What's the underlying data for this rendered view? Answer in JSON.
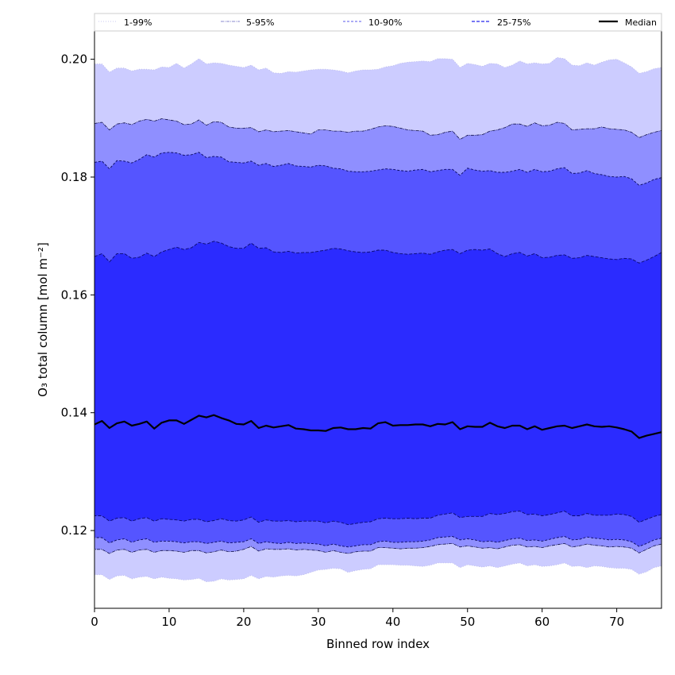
{
  "chart_data": {
    "type": "area",
    "xlabel": "Binned row index",
    "ylabel": "O₃ total column [mol m⁻²]",
    "xlim": [
      0,
      76
    ],
    "ylim": [
      0.1068,
      0.2048
    ],
    "xticks": [
      0,
      10,
      20,
      30,
      40,
      50,
      60,
      70
    ],
    "yticks": [
      0.12,
      0.14,
      0.16,
      0.18,
      0.2
    ],
    "ytick_labels": [
      "0.12",
      "0.14",
      "0.16",
      "0.18",
      "0.20"
    ],
    "grid": false,
    "legend_position": "top",
    "colors": {
      "band_1_99": "#ccccff",
      "band_5_95": "#8f8fff",
      "band_10_90": "#5555ff",
      "band_25_75": "#2b2bff",
      "median": "#000000"
    },
    "x": [
      0,
      1,
      2,
      3,
      4,
      5,
      6,
      7,
      8,
      9,
      10,
      11,
      12,
      13,
      14,
      15,
      16,
      17,
      18,
      19,
      20,
      21,
      22,
      23,
      24,
      25,
      26,
      27,
      28,
      29,
      30,
      31,
      32,
      33,
      34,
      35,
      36,
      37,
      38,
      39,
      40,
      41,
      42,
      43,
      44,
      45,
      46,
      47,
      48,
      49,
      50,
      51,
      52,
      53,
      54,
      55,
      56,
      57,
      58,
      59,
      60,
      61,
      62,
      63,
      64,
      65,
      66,
      67,
      68,
      69,
      70,
      71,
      72,
      73,
      74,
      75,
      76
    ],
    "series": [
      {
        "name": "1-99%",
        "style": "dotted",
        "lower": [
          0.1125,
          0.1125,
          0.1117,
          0.1123,
          0.1124,
          0.1118,
          0.1121,
          0.1122,
          0.1118,
          0.1121,
          0.1119,
          0.1118,
          0.1116,
          0.1117,
          0.1119,
          0.1113,
          0.1114,
          0.1118,
          0.1116,
          0.1117,
          0.1118,
          0.1124,
          0.1118,
          0.1122,
          0.1121,
          0.1123,
          0.1124,
          0.1123,
          0.1125,
          0.1129,
          0.1133,
          0.1134,
          0.1136,
          0.1135,
          0.1129,
          0.1132,
          0.1134,
          0.1135,
          0.1142,
          0.1142,
          0.1142,
          0.1141,
          0.1141,
          0.114,
          0.1139,
          0.1141,
          0.1145,
          0.1145,
          0.1145,
          0.1137,
          0.1142,
          0.114,
          0.1138,
          0.114,
          0.1137,
          0.114,
          0.1143,
          0.1145,
          0.114,
          0.1142,
          0.1139,
          0.114,
          0.1142,
          0.1145,
          0.1139,
          0.114,
          0.1137,
          0.114,
          0.1139,
          0.1137,
          0.1136,
          0.1136,
          0.1134,
          0.1126,
          0.113,
          0.1137,
          0.114
        ],
        "upper": [
          0.1992,
          0.1992,
          0.1978,
          0.1985,
          0.1985,
          0.198,
          0.1983,
          0.1983,
          0.1982,
          0.1987,
          0.1986,
          0.1993,
          0.1985,
          0.1992,
          0.2001,
          0.1992,
          0.1994,
          0.1993,
          0.199,
          0.1988,
          0.1986,
          0.199,
          0.1982,
          0.1985,
          0.1977,
          0.1976,
          0.1979,
          0.1978,
          0.198,
          0.1982,
          0.1983,
          0.1983,
          0.1982,
          0.198,
          0.1977,
          0.198,
          0.1982,
          0.1982,
          0.1983,
          0.1987,
          0.1989,
          0.1993,
          0.1995,
          0.1996,
          0.1997,
          0.1996,
          0.2001,
          0.2001,
          0.2,
          0.1986,
          0.1993,
          0.1991,
          0.1988,
          0.1993,
          0.1992,
          0.1986,
          0.199,
          0.1997,
          0.1992,
          0.1994,
          0.1992,
          0.1993,
          0.2003,
          0.2001,
          0.199,
          0.1989,
          0.1994,
          0.199,
          0.1995,
          0.1999,
          0.2,
          0.1994,
          0.1987,
          0.1976,
          0.1979,
          0.1984,
          0.1986
        ]
      },
      {
        "name": "5-95%",
        "style": "dashdot",
        "lower": [
          0.1168,
          0.1168,
          0.1161,
          0.1167,
          0.1168,
          0.1163,
          0.1167,
          0.1168,
          0.1163,
          0.1166,
          0.1166,
          0.1165,
          0.1163,
          0.1166,
          0.1166,
          0.1162,
          0.1164,
          0.1167,
          0.1164,
          0.1165,
          0.1168,
          0.1173,
          0.1165,
          0.1169,
          0.1168,
          0.1168,
          0.1169,
          0.1167,
          0.1168,
          0.1167,
          0.1166,
          0.1163,
          0.1166,
          0.1163,
          0.1161,
          0.1164,
          0.1165,
          0.1165,
          0.1171,
          0.1171,
          0.117,
          0.1169,
          0.117,
          0.117,
          0.1171,
          0.1173,
          0.1176,
          0.1177,
          0.1178,
          0.1172,
          0.1174,
          0.1172,
          0.117,
          0.1171,
          0.1169,
          0.1172,
          0.1175,
          0.1176,
          0.1172,
          0.1173,
          0.1171,
          0.1174,
          0.1176,
          0.1178,
          0.1172,
          0.1174,
          0.1177,
          0.1175,
          0.1174,
          0.1172,
          0.1173,
          0.1172,
          0.117,
          0.1162,
          0.1168,
          0.1174,
          0.1177
        ],
        "upper": [
          0.1891,
          0.1893,
          0.188,
          0.189,
          0.1892,
          0.1889,
          0.1895,
          0.1898,
          0.1895,
          0.1899,
          0.1897,
          0.1895,
          0.1889,
          0.189,
          0.1897,
          0.1888,
          0.1894,
          0.1893,
          0.1885,
          0.1883,
          0.1883,
          0.1884,
          0.1877,
          0.188,
          0.1877,
          0.1878,
          0.1879,
          0.1877,
          0.1875,
          0.1873,
          0.188,
          0.188,
          0.1878,
          0.1878,
          0.1876,
          0.1878,
          0.1878,
          0.1881,
          0.1885,
          0.1887,
          0.1886,
          0.1883,
          0.188,
          0.1879,
          0.1878,
          0.1871,
          0.1872,
          0.1876,
          0.1878,
          0.1864,
          0.1871,
          0.1871,
          0.1872,
          0.1878,
          0.188,
          0.1884,
          0.189,
          0.189,
          0.1886,
          0.1892,
          0.1887,
          0.1888,
          0.1893,
          0.1891,
          0.188,
          0.1881,
          0.1882,
          0.1882,
          0.1885,
          0.1882,
          0.1881,
          0.188,
          0.1876,
          0.1867,
          0.1872,
          0.1876,
          0.1879
        ]
      },
      {
        "name": "10-90%",
        "style": "dashed",
        "lower": [
          0.1188,
          0.1188,
          0.1179,
          0.1184,
          0.1186,
          0.118,
          0.1184,
          0.1186,
          0.118,
          0.1182,
          0.1182,
          0.1181,
          0.1179,
          0.1181,
          0.1181,
          0.1178,
          0.118,
          0.1182,
          0.1179,
          0.118,
          0.1181,
          0.1186,
          0.1178,
          0.1181,
          0.1179,
          0.1178,
          0.118,
          0.1178,
          0.1179,
          0.1178,
          0.1177,
          0.1174,
          0.1177,
          0.1174,
          0.1172,
          0.1174,
          0.1176,
          0.1176,
          0.1181,
          0.1182,
          0.118,
          0.118,
          0.1181,
          0.1181,
          0.1182,
          0.1184,
          0.1188,
          0.1189,
          0.119,
          0.1184,
          0.1186,
          0.1184,
          0.1181,
          0.1182,
          0.118,
          0.1183,
          0.1186,
          0.1187,
          0.1183,
          0.1184,
          0.1182,
          0.1185,
          0.1188,
          0.119,
          0.1184,
          0.1185,
          0.1189,
          0.1187,
          0.1186,
          0.1184,
          0.1185,
          0.1184,
          0.1181,
          0.1173,
          0.1178,
          0.1184,
          0.1187
        ],
        "upper": [
          0.1825,
          0.1827,
          0.1814,
          0.1828,
          0.1827,
          0.1824,
          0.183,
          0.1838,
          0.1834,
          0.1841,
          0.1842,
          0.1841,
          0.1837,
          0.1838,
          0.1842,
          0.1833,
          0.1835,
          0.1834,
          0.1826,
          0.1825,
          0.1824,
          0.1827,
          0.182,
          0.1823,
          0.1818,
          0.182,
          0.1823,
          0.1819,
          0.1818,
          0.1817,
          0.182,
          0.1819,
          0.1815,
          0.1814,
          0.181,
          0.1809,
          0.1809,
          0.181,
          0.1812,
          0.1814,
          0.1813,
          0.1811,
          0.181,
          0.1812,
          0.1813,
          0.1809,
          0.1811,
          0.1813,
          0.1813,
          0.1803,
          0.1815,
          0.1812,
          0.181,
          0.1811,
          0.1808,
          0.1808,
          0.181,
          0.1813,
          0.1808,
          0.1813,
          0.1809,
          0.181,
          0.1814,
          0.1816,
          0.1806,
          0.1807,
          0.1811,
          0.1806,
          0.1804,
          0.1801,
          0.18,
          0.1801,
          0.1797,
          0.1786,
          0.179,
          0.1796,
          0.1799
        ]
      },
      {
        "name": "25-75%",
        "style": "dashed",
        "lower": [
          0.1225,
          0.1225,
          0.1216,
          0.1221,
          0.1222,
          0.1216,
          0.122,
          0.1222,
          0.1216,
          0.122,
          0.1219,
          0.1218,
          0.1216,
          0.1219,
          0.1219,
          0.1215,
          0.1217,
          0.122,
          0.1217,
          0.1216,
          0.1218,
          0.1223,
          0.1214,
          0.1218,
          0.1216,
          0.1216,
          0.1217,
          0.1215,
          0.1216,
          0.1216,
          0.1216,
          0.1213,
          0.1216,
          0.1214,
          0.121,
          0.1212,
          0.1214,
          0.1215,
          0.122,
          0.1221,
          0.122,
          0.122,
          0.1221,
          0.122,
          0.1221,
          0.1221,
          0.1226,
          0.1228,
          0.123,
          0.1222,
          0.1224,
          0.1224,
          0.1224,
          0.1229,
          0.1227,
          0.1229,
          0.1232,
          0.1233,
          0.1227,
          0.1228,
          0.1225,
          0.1227,
          0.123,
          0.1233,
          0.1225,
          0.1225,
          0.1229,
          0.1226,
          0.1226,
          0.1226,
          0.1228,
          0.1227,
          0.1224,
          0.1214,
          0.1219,
          0.1224,
          0.1227
        ],
        "upper": [
          0.1665,
          0.167,
          0.1656,
          0.167,
          0.167,
          0.1662,
          0.1664,
          0.1671,
          0.1665,
          0.1673,
          0.1677,
          0.1681,
          0.1677,
          0.168,
          0.1689,
          0.1686,
          0.1691,
          0.1688,
          0.1682,
          0.1679,
          0.1679,
          0.1688,
          0.1679,
          0.168,
          0.1673,
          0.1672,
          0.1674,
          0.1671,
          0.1672,
          0.1672,
          0.1674,
          0.1676,
          0.1679,
          0.1678,
          0.1675,
          0.1673,
          0.1672,
          0.1673,
          0.1676,
          0.1676,
          0.1672,
          0.167,
          0.1669,
          0.167,
          0.1671,
          0.1669,
          0.1673,
          0.1676,
          0.1677,
          0.167,
          0.1676,
          0.1677,
          0.1676,
          0.1678,
          0.167,
          0.1665,
          0.167,
          0.1672,
          0.1666,
          0.167,
          0.1663,
          0.1664,
          0.1667,
          0.1668,
          0.1662,
          0.1663,
          0.1667,
          0.1665,
          0.1663,
          0.1661,
          0.166,
          0.1662,
          0.1661,
          0.1654,
          0.1659,
          0.1665,
          0.1672
        ]
      },
      {
        "name": "Median",
        "style": "solid",
        "values": [
          0.138,
          0.1386,
          0.1374,
          0.1382,
          0.1385,
          0.1378,
          0.1381,
          0.1385,
          0.1373,
          0.1383,
          0.1387,
          0.1387,
          0.1381,
          0.1388,
          0.1395,
          0.1392,
          0.1396,
          0.1391,
          0.1387,
          0.1381,
          0.138,
          0.1386,
          0.1374,
          0.1378,
          0.1375,
          0.1377,
          0.1379,
          0.1373,
          0.1372,
          0.137,
          0.137,
          0.1369,
          0.1374,
          0.1375,
          0.1372,
          0.1372,
          0.1374,
          0.1373,
          0.1382,
          0.1384,
          0.1378,
          0.1379,
          0.1379,
          0.138,
          0.138,
          0.1377,
          0.1381,
          0.138,
          0.1384,
          0.1372,
          0.1377,
          0.1376,
          0.1376,
          0.1383,
          0.1377,
          0.1374,
          0.1378,
          0.1378,
          0.1372,
          0.1377,
          0.1371,
          0.1374,
          0.1377,
          0.1378,
          0.1374,
          0.1377,
          0.138,
          0.1377,
          0.1376,
          0.1377,
          0.1375,
          0.1372,
          0.1368,
          0.1357,
          0.1361,
          0.1364,
          0.1367
        ]
      }
    ]
  }
}
